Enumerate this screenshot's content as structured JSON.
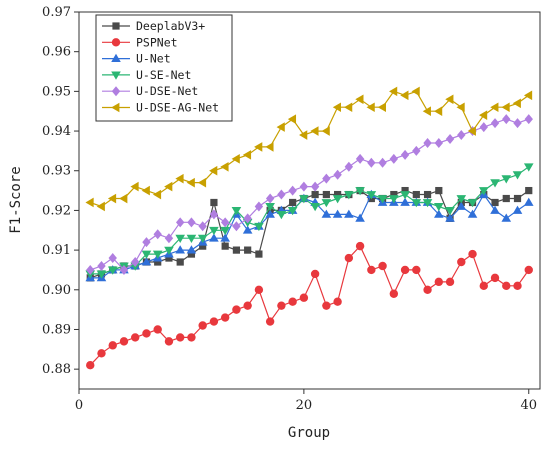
{
  "chart_data": {
    "type": "line",
    "xlabel": "Group",
    "ylabel": "F1-Score",
    "xlim": [
      0,
      41
    ],
    "ylim": [
      0.875,
      0.97
    ],
    "xticks": [
      0,
      20,
      40
    ],
    "yticks": [
      0.88,
      0.89,
      0.9,
      0.91,
      0.92,
      0.93,
      0.94,
      0.95,
      0.96,
      0.97
    ],
    "legend_position": "top-left",
    "x": [
      1,
      2,
      3,
      4,
      5,
      6,
      7,
      8,
      9,
      10,
      11,
      12,
      13,
      14,
      15,
      16,
      17,
      18,
      19,
      20,
      21,
      22,
      23,
      24,
      25,
      26,
      27,
      28,
      29,
      30,
      31,
      32,
      33,
      34,
      35,
      36,
      37,
      38,
      39,
      40
    ],
    "series": [
      {
        "name": "DeeplabV3+",
        "color": "#4a4a4a",
        "marker": "square",
        "values": [
          0.903,
          0.904,
          0.905,
          0.906,
          0.906,
          0.907,
          0.907,
          0.908,
          0.907,
          0.909,
          0.911,
          0.922,
          0.911,
          0.91,
          0.91,
          0.909,
          0.92,
          0.92,
          0.922,
          0.923,
          0.924,
          0.924,
          0.924,
          0.924,
          0.925,
          0.923,
          0.923,
          0.924,
          0.925,
          0.924,
          0.924,
          0.925,
          0.918,
          0.922,
          0.922,
          0.924,
          0.922,
          0.923,
          0.923,
          0.925
        ]
      },
      {
        "name": "PSPNet",
        "color": "#e8383d",
        "marker": "circle",
        "values": [
          0.881,
          0.884,
          0.886,
          0.887,
          0.888,
          0.889,
          0.89,
          0.887,
          0.888,
          0.888,
          0.891,
          0.892,
          0.893,
          0.895,
          0.896,
          0.9,
          0.892,
          0.896,
          0.897,
          0.898,
          0.904,
          0.896,
          0.897,
          0.908,
          0.911,
          0.905,
          0.906,
          0.899,
          0.905,
          0.905,
          0.9,
          0.902,
          0.902,
          0.907,
          0.909,
          0.901,
          0.903,
          0.901,
          0.901,
          0.905
        ]
      },
      {
        "name": "U-Net",
        "color": "#2f6fd8",
        "marker": "triangle-up",
        "values": [
          0.903,
          0.903,
          0.905,
          0.905,
          0.906,
          0.907,
          0.908,
          0.909,
          0.91,
          0.91,
          0.912,
          0.913,
          0.913,
          0.919,
          0.915,
          0.916,
          0.919,
          0.92,
          0.92,
          0.923,
          0.922,
          0.919,
          0.919,
          0.919,
          0.918,
          0.924,
          0.922,
          0.922,
          0.922,
          0.922,
          0.922,
          0.919,
          0.918,
          0.921,
          0.919,
          0.924,
          0.92,
          0.918,
          0.92,
          0.922
        ]
      },
      {
        "name": "U-SE-Net",
        "color": "#2bb673",
        "marker": "triangle-down",
        "values": [
          0.904,
          0.904,
          0.905,
          0.906,
          0.906,
          0.909,
          0.909,
          0.91,
          0.913,
          0.913,
          0.913,
          0.915,
          0.915,
          0.92,
          0.917,
          0.916,
          0.921,
          0.919,
          0.92,
          0.923,
          0.921,
          0.922,
          0.923,
          0.924,
          0.925,
          0.924,
          0.923,
          0.923,
          0.924,
          0.922,
          0.922,
          0.921,
          0.92,
          0.923,
          0.922,
          0.925,
          0.927,
          0.928,
          0.929,
          0.931
        ]
      },
      {
        "name": "U-DSE-Net",
        "color": "#b07ee0",
        "marker": "diamond",
        "values": [
          0.905,
          0.906,
          0.908,
          0.905,
          0.907,
          0.912,
          0.914,
          0.913,
          0.917,
          0.917,
          0.916,
          0.919,
          0.917,
          0.916,
          0.918,
          0.921,
          0.923,
          0.924,
          0.925,
          0.926,
          0.926,
          0.928,
          0.929,
          0.931,
          0.933,
          0.932,
          0.932,
          0.933,
          0.934,
          0.935,
          0.937,
          0.937,
          0.938,
          0.939,
          0.94,
          0.941,
          0.942,
          0.943,
          0.942,
          0.943
        ]
      },
      {
        "name": "U-DSE-AG-Net",
        "color": "#c8a000",
        "marker": "triangle-left",
        "values": [
          0.922,
          0.921,
          0.923,
          0.923,
          0.926,
          0.925,
          0.924,
          0.926,
          0.928,
          0.927,
          0.927,
          0.93,
          0.931,
          0.933,
          0.934,
          0.936,
          0.936,
          0.941,
          0.943,
          0.939,
          0.94,
          0.94,
          0.946,
          0.946,
          0.948,
          0.946,
          0.946,
          0.95,
          0.949,
          0.95,
          0.945,
          0.945,
          0.948,
          0.946,
          0.94,
          0.944,
          0.946,
          0.946,
          0.947,
          0.949
        ]
      }
    ]
  }
}
